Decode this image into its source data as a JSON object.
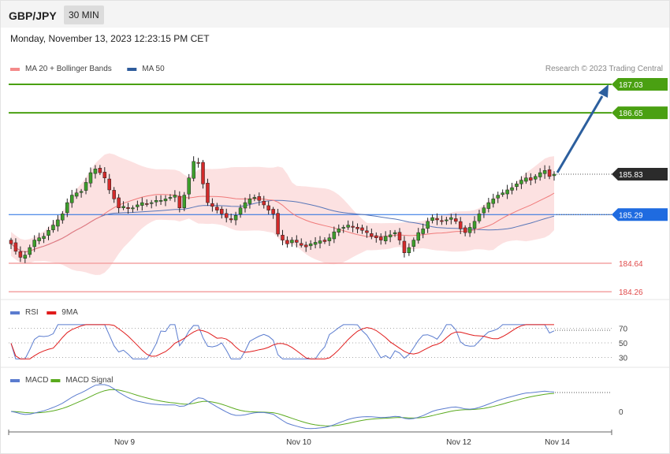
{
  "header": {
    "symbol": "GBP/JPY",
    "timeframe": "30 MIN"
  },
  "timestamp": "Monday, November 13, 2023 12:23:15 PM CET",
  "copyright": "Research © 2023 Trading Central",
  "legend": {
    "price": [
      {
        "name": "MA 20 + Bollinger Bands",
        "color": "#f48a8a"
      },
      {
        "name": "MA 50",
        "color": "#2f5c9c"
      }
    ],
    "rsi": [
      {
        "name": "RSI",
        "color": "#5b7ccf"
      },
      {
        "name": "9MA",
        "color": "#e01b1b"
      }
    ],
    "macd": [
      {
        "name": "MACD",
        "color": "#5b7ccf"
      },
      {
        "name": "MACD Signal",
        "color": "#5aaa1e"
      }
    ]
  },
  "chart_data": [
    {
      "type": "candlestick",
      "ylim": [
        184.1,
        187.2
      ],
      "levels": [
        {
          "value": 187.03,
          "label": "187.03",
          "color": "#4aa012",
          "style": "resistance"
        },
        {
          "value": 186.65,
          "label": "186.65",
          "color": "#4aa012",
          "style": "resistance"
        },
        {
          "value": 185.83,
          "label": "185.83",
          "color": "#2b2b2b",
          "style": "last"
        },
        {
          "value": 185.29,
          "label": "185.29",
          "color": "#1f6be0",
          "style": "pivot"
        },
        {
          "value": 184.64,
          "label": "184.64",
          "color": "#e04a4a",
          "style": "support"
        },
        {
          "value": 184.26,
          "label": "184.26",
          "color": "#e04a4a",
          "style": "support"
        }
      ],
      "close": [
        184.9,
        184.8,
        184.72,
        184.75,
        184.85,
        184.95,
        184.98,
        185.0,
        185.08,
        185.15,
        185.22,
        185.3,
        185.45,
        185.55,
        185.58,
        185.6,
        185.72,
        185.85,
        185.9,
        185.85,
        185.78,
        185.62,
        185.5,
        185.38,
        185.4,
        185.37,
        185.38,
        185.42,
        185.45,
        185.43,
        185.45,
        185.48,
        185.48,
        185.5,
        185.52,
        185.55,
        185.38,
        185.55,
        185.78,
        186.0,
        185.98,
        185.7,
        185.45,
        185.4,
        185.35,
        185.3,
        185.25,
        185.22,
        185.28,
        185.38,
        185.45,
        185.5,
        185.52,
        185.48,
        185.42,
        185.35,
        185.3,
        185.03,
        184.95,
        184.9,
        184.95,
        184.92,
        184.88,
        184.86,
        184.9,
        184.92,
        184.94,
        184.93,
        184.98,
        185.06,
        185.1,
        185.12,
        185.15,
        185.12,
        185.1,
        185.08,
        185.05,
        185.0,
        184.98,
        184.95,
        185.0,
        185.02,
        185.05,
        184.95,
        184.78,
        184.85,
        184.95,
        185.05,
        185.1,
        185.2,
        185.25,
        185.22,
        185.2,
        185.22,
        185.25,
        185.2,
        185.1,
        185.05,
        185.12,
        185.2,
        185.3,
        185.38,
        185.45,
        185.5,
        185.55,
        185.58,
        185.62,
        185.65,
        185.7,
        185.75,
        185.78,
        185.75,
        185.8,
        185.85,
        185.88,
        185.8,
        185.83
      ],
      "arrow": {
        "from": 185.83,
        "to": 187.03
      },
      "x_ticks": [
        "Nov 9",
        "Nov 10",
        "Nov 12",
        "Nov 14"
      ]
    },
    {
      "type": "line",
      "name": "RSI",
      "levels": [
        70,
        50,
        30
      ],
      "level_labels": [
        "70",
        "50",
        "30"
      ]
    },
    {
      "type": "line",
      "name": "MACD",
      "levels": [
        0
      ],
      "level_labels": [
        "0"
      ]
    }
  ]
}
